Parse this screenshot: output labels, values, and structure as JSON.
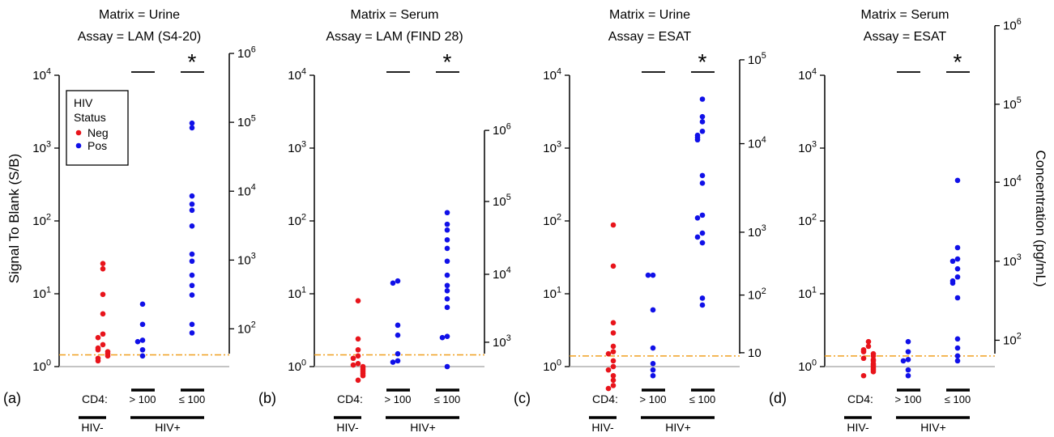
{
  "shared": {
    "y_label": "Signal To Blank (S/B)",
    "y2_label": "Concentration (pg/mL)",
    "cd4_label": "CD4:",
    "groups": [
      "HIV-",
      "> 100",
      "≤ 100"
    ],
    "hiv_labels": [
      "HIV-",
      "HIV+"
    ],
    "significance_marker": "*",
    "legend": {
      "title_lines": [
        "HIV",
        "Status"
      ],
      "entries": [
        {
          "label": "Neg",
          "color": "#e8141b"
        },
        {
          "label": "Pos",
          "color": "#1010e8"
        }
      ]
    },
    "colors": {
      "neg": "#e8141b",
      "pos": "#1010e8",
      "threshold": "#f0a020",
      "baseline": "#b0b0b0"
    }
  },
  "chart_data": [
    {
      "type": "scatter",
      "panel_label": "(a)",
      "title_lines": [
        "Matrix = Urine",
        "Assay = LAM (S4-20)"
      ],
      "y_scale": "log",
      "ylim": [
        1,
        10000
      ],
      "yticks": [
        1,
        10,
        100,
        1000,
        10000
      ],
      "y2_ticks": [
        {
          "label": "10^2",
          "sb": 3.3
        },
        {
          "label": "10^3",
          "sb": 29
        },
        {
          "label": "10^4",
          "sb": 256
        },
        {
          "label": "10^5",
          "sb": 2260
        },
        {
          "label": "10^6",
          "sb": 19950
        }
      ],
      "threshold": 1.45,
      "baseline": 1.0,
      "series": [
        {
          "name": "Neg",
          "group": "HIV-",
          "values": [
            26,
            22,
            9.8,
            5.3,
            2.8,
            2.5,
            2.0,
            1.8,
            1.7,
            1.6,
            1.5,
            1.4,
            1.3,
            1.2
          ]
        },
        {
          "name": "Pos",
          "group": "> 100",
          "values": [
            7.2,
            3.8,
            2.3,
            2.2,
            1.7,
            1.4
          ]
        },
        {
          "name": "Pos",
          "group": "≤ 100",
          "values": [
            2200,
            1900,
            220,
            170,
            140,
            85,
            35,
            28,
            18,
            13,
            9.6,
            3.8,
            2.9
          ]
        }
      ],
      "significance": [
        "> 100",
        "≤ 100"
      ]
    },
    {
      "type": "scatter",
      "panel_label": "(b)",
      "title_lines": [
        "Matrix = Serum",
        "Assay = LAM (FIND 28)"
      ],
      "y_scale": "log",
      "ylim": [
        1,
        10000
      ],
      "yticks": [
        1,
        10,
        100,
        1000,
        10000
      ],
      "y2_ticks": [
        {
          "label": "10^3",
          "sb": 2.16
        },
        {
          "label": "10^4",
          "sb": 18.5
        },
        {
          "label": "10^5",
          "sb": 185
        },
        {
          "label": "10^6",
          "sb": 1750
        }
      ],
      "threshold": 1.45,
      "baseline": 1.0,
      "series": [
        {
          "name": "Neg",
          "group": "HIV-",
          "values": [
            8.0,
            2.4,
            1.7,
            1.4,
            1.3,
            1.1,
            1.05,
            1.0,
            0.95,
            0.9,
            0.85,
            0.8,
            0.75,
            0.65
          ]
        },
        {
          "name": "Pos",
          "group": "> 100",
          "values": [
            15,
            14,
            3.7,
            2.7,
            1.5,
            1.2,
            1.15
          ]
        },
        {
          "name": "Pos",
          "group": "≤ 100",
          "values": [
            130,
            90,
            75,
            55,
            42,
            28,
            18,
            13,
            11,
            8.5,
            6.5,
            2.6,
            2.5,
            1.0
          ]
        }
      ],
      "significance": [
        "> 100",
        "≤ 100"
      ]
    },
    {
      "type": "scatter",
      "panel_label": "(c)",
      "title_lines": [
        "Matrix = Urine",
        "Assay = ESAT"
      ],
      "y_scale": "log",
      "ylim": [
        1,
        10000
      ],
      "yticks": [
        1,
        10,
        100,
        1000,
        10000
      ],
      "y2_ticks": [
        {
          "label": "10",
          "sb": 1.55
        },
        {
          "label": "10^2",
          "sb": 9.6
        },
        {
          "label": "10^3",
          "sb": 70
        },
        {
          "label": "10^4",
          "sb": 1150
        },
        {
          "label": "10^5",
          "sb": 16300
        }
      ],
      "threshold": 1.4,
      "baseline": 1.0,
      "series": [
        {
          "name": "Neg",
          "group": "HIV-",
          "values": [
            88,
            24,
            4.0,
            2.9,
            1.9,
            1.6,
            1.5,
            1.2,
            1.0,
            0.9,
            0.75,
            0.65,
            0.55,
            0.5
          ]
        },
        {
          "name": "Pos",
          "group": "> 100",
          "values": [
            18,
            18,
            6.0,
            1.8,
            1.1,
            0.9,
            0.75
          ]
        },
        {
          "name": "Pos",
          "group": "≤ 100",
          "values": [
            4700,
            2700,
            2300,
            1700,
            1500,
            1400,
            1300,
            420,
            330,
            120,
            110,
            68,
            60,
            50,
            8.7,
            7.0
          ]
        }
      ],
      "significance": [
        "> 100",
        "≤ 100"
      ]
    },
    {
      "type": "scatter",
      "panel_label": "(d)",
      "title_lines": [
        "Matrix = Serum",
        "Assay = ESAT"
      ],
      "y_scale": "log",
      "ylim": [
        1,
        10000
      ],
      "yticks": [
        1,
        10,
        100,
        1000,
        10000
      ],
      "y2_ticks": [
        {
          "label": "10^2",
          "sb": 2.3
        },
        {
          "label": "10^3",
          "sb": 28
        },
        {
          "label": "10^4",
          "sb": 340
        },
        {
          "label": "10^5",
          "sb": 4000
        },
        {
          "label": "10^6",
          "sb": 48000
        }
      ],
      "threshold": 1.4,
      "baseline": 1.0,
      "series": [
        {
          "name": "Neg",
          "group": "HIV-",
          "values": [
            2.2,
            1.9,
            1.7,
            1.6,
            1.5,
            1.4,
            1.3,
            1.25,
            1.2,
            1.1,
            1.05,
            1.0,
            0.95,
            0.9,
            0.85,
            0.75
          ]
        },
        {
          "name": "Pos",
          "group": "> 100",
          "values": [
            2.2,
            1.6,
            1.25,
            1.2,
            0.9,
            0.75
          ]
        },
        {
          "name": "Pos",
          "group": "≤ 100",
          "values": [
            360,
            43,
            30,
            28,
            22,
            17,
            15,
            14,
            8.8,
            2.4,
            1.8,
            1.4,
            1.2
          ]
        }
      ],
      "significance": [
        "> 100",
        "≤ 100"
      ]
    }
  ]
}
